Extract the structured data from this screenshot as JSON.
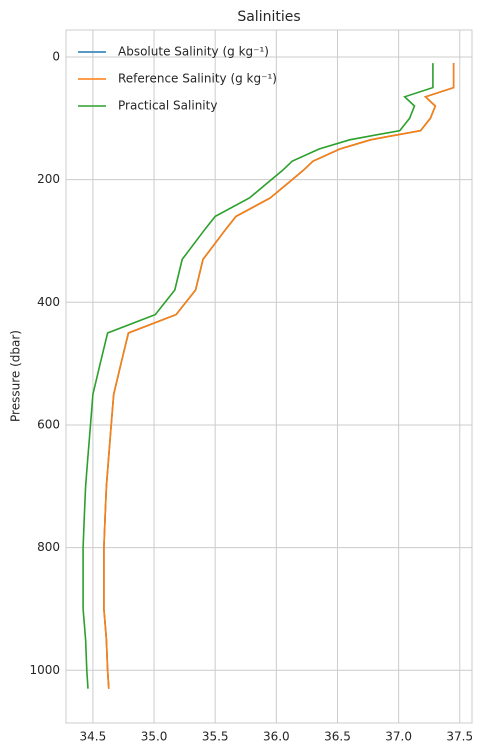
{
  "chart_data": {
    "type": "line",
    "title": "Salinities",
    "ylabel": "Pressure (dbar)",
    "y": [
      10,
      50,
      65,
      80,
      100,
      120,
      135,
      150,
      170,
      185,
      200,
      230,
      260,
      280,
      330,
      380,
      420,
      450,
      500,
      550,
      600,
      650,
      700,
      750,
      800,
      900,
      950,
      1000,
      1030
    ],
    "series": [
      {
        "name": "Absolute Salinity (g kg⁻¹)",
        "color": "#1f77b4",
        "values": [
          37.45,
          37.45,
          37.22,
          37.3,
          37.26,
          37.18,
          36.77,
          36.52,
          36.3,
          36.22,
          36.13,
          35.95,
          35.67,
          35.59,
          35.4,
          35.34,
          35.18,
          34.79,
          34.73,
          34.67,
          34.65,
          34.63,
          34.61,
          34.6,
          34.59,
          34.59,
          34.61,
          34.62,
          34.63
        ]
      },
      {
        "name": "Reference Salinity (g kg⁻¹)",
        "color": "#ff7f0e",
        "values": [
          37.45,
          37.45,
          37.22,
          37.3,
          37.26,
          37.18,
          36.77,
          36.52,
          36.3,
          36.22,
          36.13,
          35.95,
          35.67,
          35.59,
          35.4,
          35.34,
          35.18,
          34.79,
          34.73,
          34.67,
          34.65,
          34.63,
          34.61,
          34.6,
          34.59,
          34.59,
          34.61,
          34.62,
          34.63
        ]
      },
      {
        "name": "Practical Salinity",
        "color": "#2ca02c",
        "values": [
          37.28,
          37.28,
          37.05,
          37.13,
          37.09,
          37.01,
          36.6,
          36.35,
          36.13,
          36.05,
          35.96,
          35.78,
          35.5,
          35.42,
          35.23,
          35.17,
          35.01,
          34.62,
          34.56,
          34.5,
          34.48,
          34.46,
          34.44,
          34.43,
          34.42,
          34.42,
          34.44,
          34.45,
          34.46
        ]
      }
    ],
    "xlim": [
      34.28,
      37.6
    ],
    "xticks": [
      34.5,
      {
        "value": 35,
        "label": "35.0"
      },
      35.5,
      {
        "value": 36,
        "label": "36.0"
      },
      36.5,
      {
        "value": 37,
        "label": "37.0"
      },
      37.5
    ],
    "ylim": [
      -44,
      1086
    ],
    "y_inverted": true,
    "yticks": [
      0,
      200,
      400,
      600,
      800,
      1000
    ],
    "grid": true,
    "legend": "upper left"
  }
}
